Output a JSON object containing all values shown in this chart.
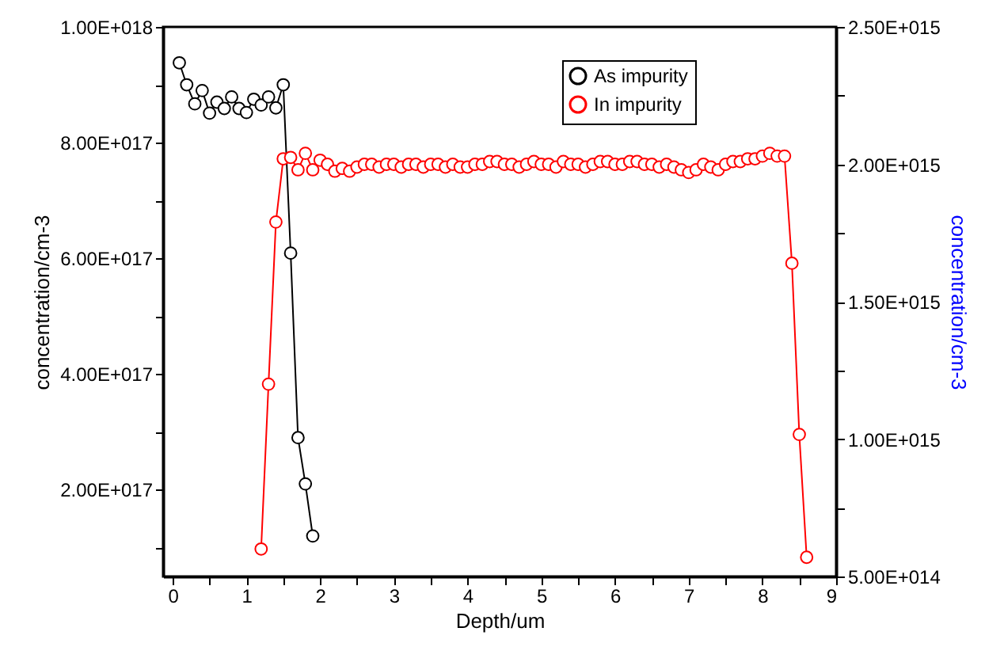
{
  "chart_data": {
    "type": "line",
    "xlabel": "Depth/um",
    "ylabel": "concentration/cm-3",
    "y2label": "concentration/cm-3",
    "xlim": [
      -0.13,
      9
    ],
    "xticks": [
      0,
      {
        "value": 0.5,
        "label": null
      },
      1,
      {
        "value": 1.5,
        "label": null
      },
      2,
      {
        "value": 2.5,
        "label": null
      },
      3,
      {
        "value": 3.5,
        "label": null
      },
      4,
      {
        "value": 4.5,
        "label": null
      },
      5,
      {
        "value": 5.5,
        "label": null
      },
      6,
      {
        "value": 6.5,
        "label": null
      },
      7,
      {
        "value": 7.5,
        "label": null
      },
      8,
      {
        "value": 8.5,
        "label": null
      },
      9
    ],
    "ylim": [
      5e+16,
      1e+18
    ],
    "yticks": [
      {
        "value": 1e+17,
        "label": null
      },
      {
        "value": 2e+17,
        "label": "2.00E+017"
      },
      {
        "value": 3e+17,
        "label": null
      },
      {
        "value": 4e+17,
        "label": "4.00E+017"
      },
      {
        "value": 5e+17,
        "label": null
      },
      {
        "value": 6e+17,
        "label": "6.00E+017"
      },
      {
        "value": 7e+17,
        "label": null
      },
      {
        "value": 8e+17,
        "label": "8.00E+017"
      },
      {
        "value": 9e+17,
        "label": null
      },
      {
        "value": 1e+18,
        "label": "1.00E+018"
      }
    ],
    "y2lim": [
      500000000000000.0,
      2500000000000000.0
    ],
    "y2ticks": [
      {
        "value": 500000000000000.0,
        "label": "5.00E+014"
      },
      {
        "value": 750000000000000.0,
        "label": null
      },
      {
        "value": 1000000000000000.0,
        "label": "1.00E+015"
      },
      {
        "value": 1250000000000000.0,
        "label": null
      },
      {
        "value": 1500000000000000.0,
        "label": "1.50E+015"
      },
      {
        "value": 1750000000000000.0,
        "label": null
      },
      {
        "value": 2000000000000000.0,
        "label": "2.00E+015"
      },
      {
        "value": 2250000000000000.0,
        "label": null
      },
      {
        "value": 2500000000000000.0,
        "label": "2.50E+015"
      }
    ],
    "legend": "top right",
    "marker": "circle",
    "line_style": "solid",
    "grid": false,
    "series": [
      {
        "name": "As impurity",
        "color": "#000000",
        "axis": "y",
        "x": [
          0.09,
          0.19,
          0.3,
          0.4,
          0.5,
          0.6,
          0.7,
          0.8,
          0.9,
          1.0,
          1.1,
          1.2,
          1.3,
          1.4,
          1.5,
          1.6,
          1.7,
          1.8,
          1.9
        ],
        "values": [
          9.38e+17,
          9e+17,
          8.67e+17,
          8.9e+17,
          8.51e+17,
          8.7e+17,
          8.59e+17,
          8.79e+17,
          8.59e+17,
          8.52e+17,
          8.75e+17,
          8.65e+17,
          8.79e+17,
          8.6e+17,
          9e+17,
          6.09e+17,
          2.9e+17,
          2.1e+17,
          1.2e+17
        ]
      },
      {
        "name": "In impurity",
        "color": "#ff0000",
        "axis": "y2",
        "x": [
          1.2,
          1.3,
          1.4,
          1.5,
          1.6,
          1.7,
          1.8,
          1.9,
          2.0,
          2.1,
          2.2,
          2.3,
          2.4,
          2.5,
          2.6,
          2.7,
          2.8,
          2.9,
          3.0,
          3.1,
          3.2,
          3.3,
          3.4,
          3.5,
          3.6,
          3.7,
          3.8,
          3.9,
          4.0,
          4.1,
          4.2,
          4.3,
          4.4,
          4.5,
          4.6,
          4.7,
          4.8,
          4.9,
          5.0,
          5.1,
          5.2,
          5.3,
          5.4,
          5.5,
          5.6,
          5.7,
          5.8,
          5.9,
          6.0,
          6.1,
          6.2,
          6.3,
          6.4,
          6.5,
          6.6,
          6.7,
          6.8,
          6.9,
          7.0,
          7.1,
          7.2,
          7.3,
          7.4,
          7.5,
          7.6,
          7.7,
          7.8,
          7.9,
          8.0,
          8.1,
          8.2,
          8.3,
          8.4,
          8.5,
          8.6
        ],
        "values": [
          600000000000000.0,
          1200000000000000.0,
          1790000000000000.0,
          2020000000000000.0,
          2025000000000000.0,
          1980000000000000.0,
          2040000000000000.0,
          1980000000000000.0,
          2015000000000000.0,
          2000000000000000.0,
          1975000000000000.0,
          1985000000000000.0,
          1975000000000000.0,
          1990000000000000.0,
          2000000000000000.0,
          2000000000000000.0,
          1990000000000000.0,
          2000000000000000.0,
          2000000000000000.0,
          1990000000000000.0,
          2000000000000000.0,
          2000000000000000.0,
          1990000000000000.0,
          2000000000000000.0,
          2000000000000000.0,
          1990000000000000.0,
          2000000000000000.0,
          1990000000000000.0,
          1990000000000000.0,
          2000000000000000.0,
          2000000000000000.0,
          2010000000000000.0,
          2010000000000000.0,
          2000000000000000.0,
          2000000000000000.0,
          1990000000000000.0,
          2000000000000000.0,
          2010000000000000.0,
          2000000000000000.0,
          2000000000000000.0,
          1990000000000000.0,
          2010000000000000.0,
          2000000000000000.0,
          2000000000000000.0,
          1990000000000000.0,
          2000000000000000.0,
          2010000000000000.0,
          2010000000000000.0,
          2000000000000000.0,
          2000000000000000.0,
          2010000000000000.0,
          2010000000000000.0,
          2000000000000000.0,
          2000000000000000.0,
          1990000000000000.0,
          2000000000000000.0,
          1990000000000000.0,
          1980000000000000.0,
          1970000000000000.0,
          1980000000000000.0,
          2000000000000000.0,
          1990000000000000.0,
          1980000000000000.0,
          2000000000000000.0,
          2010000000000000.0,
          2010000000000000.0,
          2020000000000000.0,
          2020000000000000.0,
          2030000000000000.0,
          2040000000000000.0,
          2030000000000000.0,
          2030000000000000.0,
          1640000000000000.0,
          1017000000000000.0,
          570000000000000.0
        ]
      }
    ]
  }
}
